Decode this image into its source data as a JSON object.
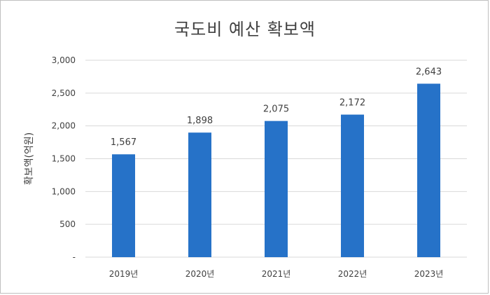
{
  "chart_data": {
    "type": "bar",
    "title": "국도비 예산 확보액",
    "ylabel": "확보액(억원)",
    "xlabel": "",
    "categories": [
      "2019년",
      "2020년",
      "2021년",
      "2022년",
      "2023년"
    ],
    "values": [
      1567,
      1898,
      2075,
      2172,
      2643
    ],
    "value_labels": [
      "1,567",
      "1,898",
      "2,075",
      "2,172",
      "2,643"
    ],
    "ylim": [
      0,
      3000
    ],
    "yticks": [
      0,
      500,
      1000,
      1500,
      2000,
      2500,
      3000
    ],
    "ytick_labels": [
      "-",
      "500",
      "1,000",
      "1,500",
      "2,000",
      "2,500",
      "3,000"
    ],
    "grid": true,
    "bar_color": "#2672c8",
    "grid_color": "#d9d9d9",
    "text_color": "#404040"
  }
}
